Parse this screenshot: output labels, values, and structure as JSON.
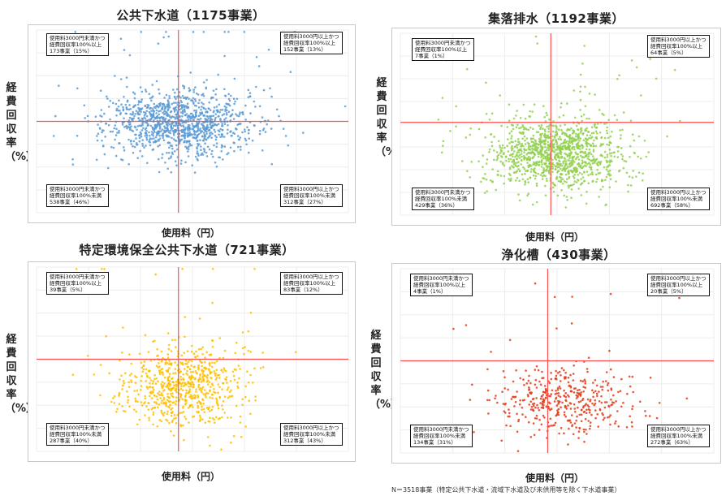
{
  "colors": {
    "sewer": "#5b9bd5",
    "rural": "#92d050",
    "special": "#ffc000",
    "septic": "#e03c1a",
    "crosshair": "#ff4d4d"
  },
  "chart_data": [
    {
      "type": "scatter",
      "title": "公共下水道（1175事業）",
      "xlabel": "使用料（円）",
      "ylabel": "経費回収率（%）",
      "grid": true,
      "quadrants": {
        "top_left": [
          "使用料3000円未満かつ",
          "経費回収率100%以上",
          "173事業（15%）"
        ],
        "top_right": [
          "使用料3000円以上かつ",
          "経費回収率100%以上",
          "152事業（13%）"
        ],
        "bottom_left": [
          "使用料3000円未満かつ",
          "経費回収率100%未満",
          "538事業（46%）"
        ],
        "bottom_right": [
          "使用料3000円以上かつ",
          "経費回収率100%未満",
          "312事業（27%）"
        ]
      },
      "point_count": 1175
    },
    {
      "type": "scatter",
      "title": "集落排水（1192事業）",
      "xlabel": "使用料（円）",
      "ylabel": "経費回収率（%）",
      "grid": true,
      "quadrants": {
        "top_left": [
          "使用料3000円未満かつ",
          "経費回収率100%以上",
          "7事業（1%）"
        ],
        "top_right": [
          "使用料3000円以上かつ",
          "経費回収率100%以上",
          "64事業（5%）"
        ],
        "bottom_left": [
          "使用料3000円未満かつ",
          "経費回収率100%未満",
          "429事業（36%）"
        ],
        "bottom_right": [
          "使用料3000円以上かつ",
          "経費回収率100%未満",
          "692事業（58%）"
        ]
      },
      "point_count": 1192
    },
    {
      "type": "scatter",
      "title": "特定環境保全公共下水道（721事業）",
      "xlabel": "使用料（円）",
      "ylabel": "経費回収率（%）",
      "grid": true,
      "quadrants": {
        "top_left": [
          "使用料3000円未満かつ",
          "経費回収率100%以上",
          "39事業（5%）"
        ],
        "top_right": [
          "使用料3000円以上かつ",
          "経費回収率100%以上",
          "83事業（12%）"
        ],
        "bottom_left": [
          "使用料3000円未満かつ",
          "経費回収率100%未満",
          "287事業（40%）"
        ],
        "bottom_right": [
          "使用料3000円以上かつ",
          "経費回収率100%未満",
          "312事業（43%）"
        ]
      },
      "point_count": 721
    },
    {
      "type": "scatter",
      "title": "浄化槽（430事業）",
      "xlabel": "使用料（円）",
      "ylabel": "経費回収率（%）",
      "grid": true,
      "quadrants": {
        "top_left": [
          "使用料3000円未満かつ",
          "経費回収率100%以上",
          "4事業（1%）"
        ],
        "top_right": [
          "使用料3000円以上かつ",
          "経費回収率100%以上",
          "20事業（5%）"
        ],
        "bottom_left": [
          "使用料3000円未満かつ",
          "経費回収率100%未満",
          "134事業（31%）"
        ],
        "bottom_right": [
          "使用料3000円以上かつ",
          "経費回収率100%未満",
          "272事業（63%）"
        ]
      },
      "point_count": 430
    }
  ],
  "footnote": "N＝3518事業（特定公共下水道・流域下水道及び未供用等を除く下水道事業）"
}
